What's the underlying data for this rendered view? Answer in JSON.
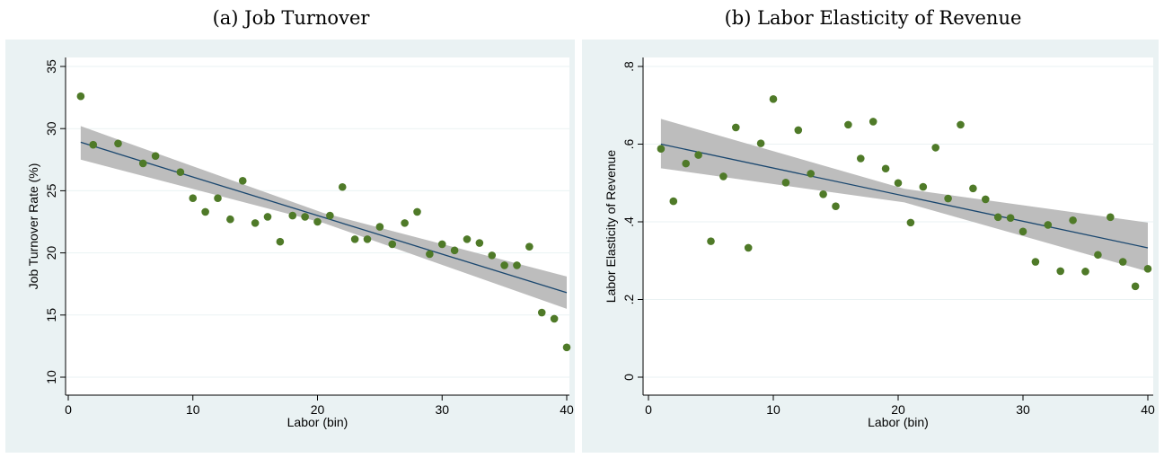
{
  "captions": {
    "a": "(a) Job Turnover",
    "b": "(b) Labor Elasticity of Revenue"
  },
  "colors": {
    "background": "#eaf2f3",
    "plot_area": "#ffffff",
    "gridline": "#eaf2f3",
    "marker": "#4f7a28",
    "fit_line": "#1a476f",
    "ci_band": "#bdbdbd"
  },
  "chart_data": [
    {
      "type": "scatter",
      "title": "(a) Job Turnover",
      "xlabel": "Labor (bin)",
      "ylabel": "Job Turnover Rate (%)",
      "xlim": [
        0,
        40
      ],
      "ylim": [
        10,
        35
      ],
      "xticks": [
        0,
        10,
        20,
        30,
        40
      ],
      "xtick_labels": [
        "0",
        "10",
        "20",
        "30",
        "40"
      ],
      "yticks": [
        10,
        15,
        20,
        25,
        30,
        35
      ],
      "ytick_labels": [
        "10",
        "15",
        "20",
        "25",
        "30",
        "35"
      ],
      "grid": true,
      "series": [
        {
          "x": [
            1,
            2,
            4,
            6,
            7,
            9,
            10,
            11,
            12,
            13,
            14,
            15,
            16,
            17,
            18,
            19,
            20,
            21,
            22,
            23,
            24,
            25,
            26,
            27,
            28,
            29,
            30,
            31,
            32,
            33,
            34,
            35,
            36,
            37,
            38,
            39,
            40
          ],
          "y": [
            32.6,
            28.7,
            28.8,
            27.2,
            27.8,
            26.5,
            24.4,
            23.3,
            24.4,
            22.7,
            25.8,
            22.4,
            22.9,
            20.9,
            23.0,
            22.9,
            22.5,
            23.0,
            25.3,
            21.1,
            21.1,
            22.1,
            20.7,
            22.4,
            23.3,
            19.9,
            20.7,
            20.2,
            21.1,
            20.8,
            19.8,
            19.0,
            19.0,
            20.5,
            15.2,
            14.7,
            12.4
          ]
        }
      ],
      "fit_line": {
        "x": [
          1,
          40
        ],
        "y": [
          28.9,
          16.8
        ]
      },
      "confidence_band": {
        "x": [
          1,
          20.5,
          40
        ],
        "lower": [
          27.5,
          22.4,
          15.5
        ],
        "upper": [
          30.2,
          23.2,
          18.1
        ]
      }
    },
    {
      "type": "scatter",
      "title": "(b) Labor Elasticity of Revenue",
      "xlabel": "Labor (bin)",
      "ylabel": "Labor Elasticity of Revenue",
      "xlim": [
        0,
        40
      ],
      "ylim": [
        0,
        0.8
      ],
      "xticks": [
        0,
        10,
        20,
        30,
        40
      ],
      "xtick_labels": [
        "0",
        "10",
        "20",
        "30",
        "40"
      ],
      "yticks": [
        0,
        0.2,
        0.4,
        0.6,
        0.8
      ],
      "ytick_labels": [
        "0",
        ".2",
        ".4",
        ".6",
        ".8"
      ],
      "grid": true,
      "series": [
        {
          "x": [
            1,
            2,
            3,
            4,
            5,
            6,
            7,
            8,
            9,
            10,
            11,
            12,
            13,
            14,
            15,
            16,
            17,
            18,
            19,
            20,
            21,
            22,
            23,
            24,
            25,
            26,
            27,
            28,
            29,
            30,
            31,
            32,
            33,
            34,
            35,
            36,
            37,
            38,
            39,
            40
          ],
          "y": [
            0.588,
            0.453,
            0.55,
            0.572,
            0.35,
            0.517,
            0.643,
            0.333,
            0.602,
            0.716,
            0.501,
            0.636,
            0.524,
            0.471,
            0.44,
            0.65,
            0.563,
            0.658,
            0.537,
            0.5,
            0.398,
            0.49,
            0.591,
            0.46,
            0.65,
            0.486,
            0.458,
            0.412,
            0.41,
            0.375,
            0.297,
            0.392,
            0.273,
            0.404,
            0.272,
            0.315,
            0.412,
            0.297,
            0.234,
            0.279
          ]
        }
      ],
      "fit_line": {
        "x": [
          1,
          40
        ],
        "y": [
          0.6,
          0.333
        ]
      },
      "confidence_band": {
        "x": [
          1,
          20.5,
          40
        ],
        "lower": [
          0.538,
          0.45,
          0.272
        ],
        "upper": [
          0.665,
          0.485,
          0.398
        ]
      }
    }
  ]
}
